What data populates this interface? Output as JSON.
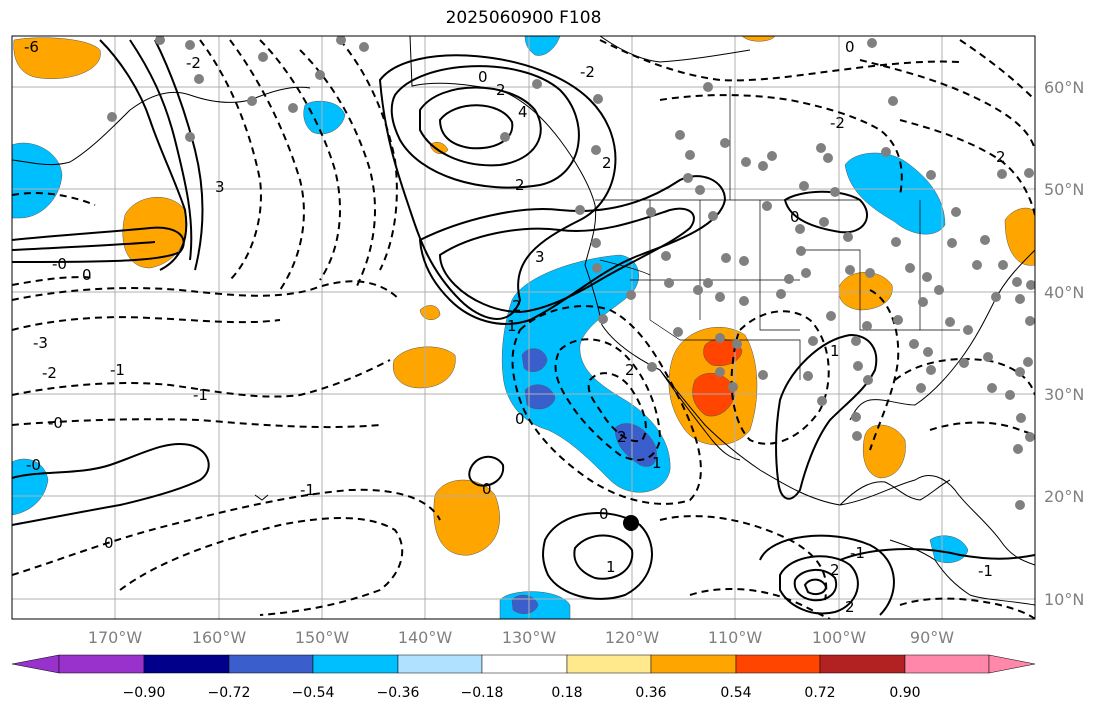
{
  "title": "2025060900 F108",
  "longitude_labels": [
    "170°W",
    "160°W",
    "150°W",
    "140°W",
    "130°W",
    "120°W",
    "110°W",
    "100°W",
    "90°W"
  ],
  "latitude_labels": [
    "60°N",
    "50°N",
    "40°N",
    "30°N",
    "20°N",
    "10°N"
  ],
  "colorbar": {
    "tick_labels": [
      "−0.90",
      "−0.72",
      "−0.54",
      "−0.36",
      "−0.18",
      "0.18",
      "0.36",
      "0.54",
      "0.72",
      "0.90"
    ],
    "colors": [
      "#9932cc",
      "#00008b",
      "#3a5fcd",
      "#00bfff",
      "#b0e2ff",
      "#ffffff",
      "#ffe98c",
      "#ffa500",
      "#ff4500",
      "#b22222",
      "#ff88aa"
    ]
  },
  "contour_labels": [
    "0",
    "2",
    "4",
    "2",
    "3",
    "2",
    "1",
    "0",
    "-0",
    "-2",
    "-1",
    "-0",
    "2",
    "3",
    "0",
    "-1",
    "-2",
    "-3",
    "2",
    "-1",
    "0",
    "0",
    "-0",
    "2",
    "1",
    "0",
    "1",
    "2",
    "-1",
    "2",
    "-1",
    "0",
    "2",
    "1",
    "0",
    "-6",
    "-2",
    "-2"
  ],
  "shading": {
    "positive": "#ffa500",
    "strong_positive": "#ff4500",
    "negative": "#00bfff",
    "strong_negative": "#3a5fcd"
  }
}
